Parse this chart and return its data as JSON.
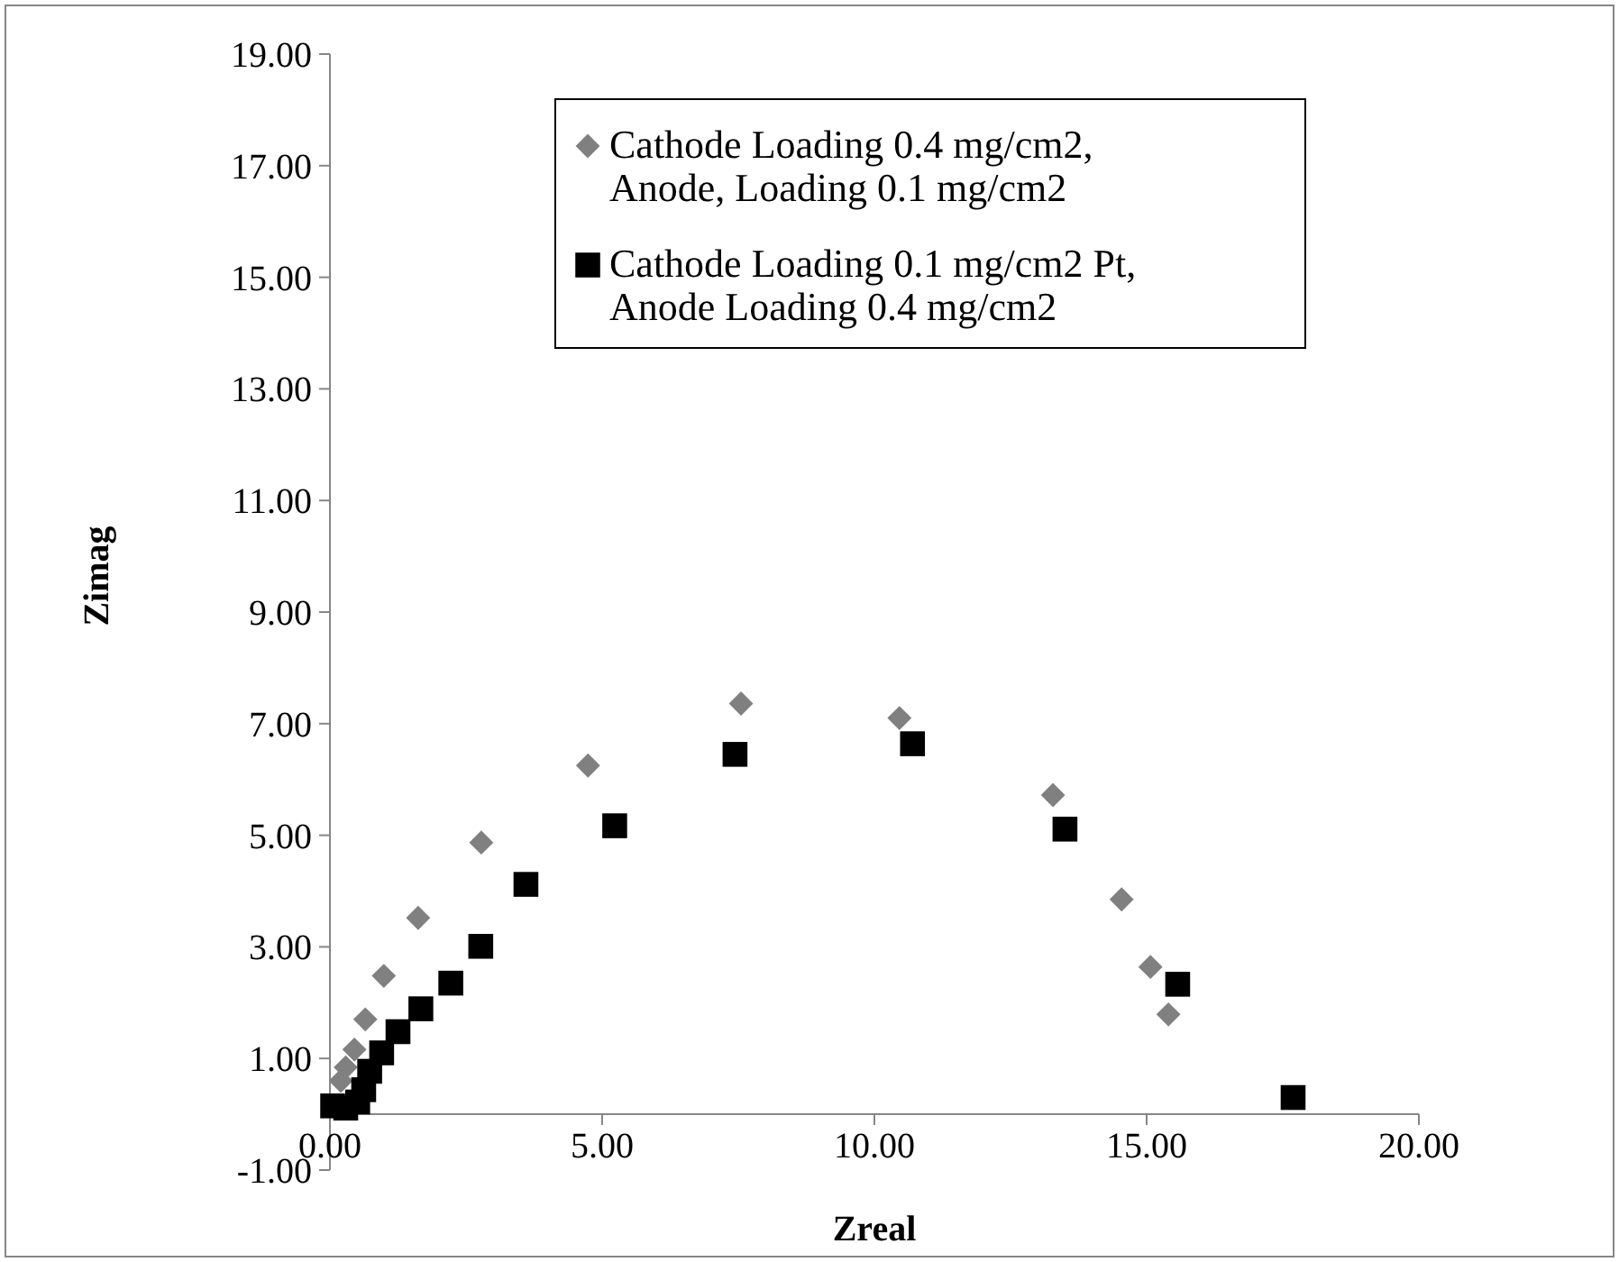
{
  "chart_data": {
    "type": "scatter",
    "xlabel": "Zreal",
    "ylabel": "Zimag",
    "xlim": [
      0,
      20
    ],
    "xticks": [
      {
        "value": 0,
        "label": "0.00"
      },
      {
        "value": 5,
        "label": "5.00"
      },
      {
        "value": 10,
        "label": "10.00"
      },
      {
        "value": 15,
        "label": "15.00"
      },
      {
        "value": 20,
        "label": "20.00"
      }
    ],
    "ylim": [
      -1,
      19
    ],
    "yticks": [
      {
        "value": -1,
        "label": "-1.00"
      },
      {
        "value": 1,
        "label": "1.00"
      },
      {
        "value": 3,
        "label": "3.00"
      },
      {
        "value": 5,
        "label": "5.00"
      },
      {
        "value": 7,
        "label": "7.00"
      },
      {
        "value": 9,
        "label": "9.00"
      },
      {
        "value": 11,
        "label": "11.00"
      },
      {
        "value": 13,
        "label": "13.00"
      },
      {
        "value": 15,
        "label": "15.00"
      },
      {
        "value": 17,
        "label": "17.00"
      },
      {
        "value": 19,
        "label": "19.00"
      }
    ],
    "grid": false,
    "legend": "top right",
    "series": [
      {
        "name": "Cathode Loading 0.4 mg/cm2, Anode, Loading 0.1 mg/cm2",
        "color": "#808080",
        "marker": "diamond",
        "x": [
          0.2,
          0.29,
          0.45,
          0.65,
          0.99,
          1.62,
          2.78,
          4.74,
          7.55,
          10.46,
          13.28,
          14.54,
          15.07,
          15.4
        ],
        "values": [
          0.6,
          0.84,
          1.16,
          1.7,
          2.48,
          3.52,
          4.87,
          6.25,
          7.36,
          7.1,
          5.72,
          3.85,
          2.64,
          1.79
        ]
      },
      {
        "name": "Cathode Loading 0.1 mg/cm2 Pt, Anode Loading 0.4 mg/cm2",
        "color": "#000000",
        "marker": "square",
        "x": [
          0.05,
          0.29,
          0.51,
          0.62,
          0.73,
          0.95,
          1.25,
          1.67,
          2.22,
          2.77,
          3.6,
          5.23,
          7.44,
          10.7,
          13.5,
          15.57,
          17.69
        ],
        "values": [
          0.15,
          0.11,
          0.22,
          0.44,
          0.77,
          1.1,
          1.48,
          1.89,
          2.35,
          3.01,
          4.12,
          5.17,
          6.45,
          6.64,
          5.11,
          2.33,
          0.3
        ]
      }
    ]
  }
}
